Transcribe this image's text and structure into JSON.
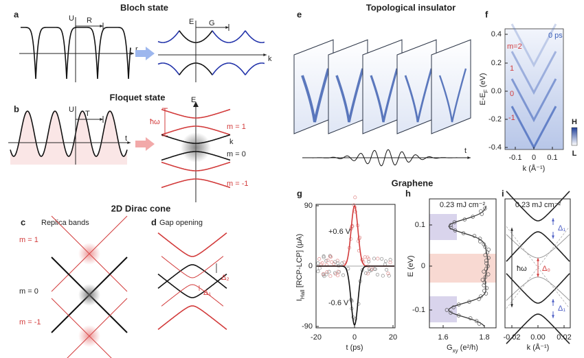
{
  "titles": {
    "bloch": "Bloch state",
    "floquet": "Floquet state",
    "dirac": "2D Dirac cone",
    "ti": "Topological insulator",
    "graphene": "Graphene"
  },
  "panel_labels": [
    "a",
    "b",
    "c",
    "d",
    "e",
    "f",
    "g",
    "h",
    "i"
  ],
  "a": {
    "potential_axis": "U",
    "period": "R",
    "position_axis": "r",
    "energy_axis": "E",
    "reciprocal": "G",
    "momentum_axis": "k"
  },
  "b": {
    "potential_axis": "U",
    "period": "T",
    "time_axis": "t",
    "energy_axis": "E",
    "photon": "ħω",
    "momentum_axis": "k",
    "replicas": [
      "m = 1",
      "m = 0",
      "m = -1"
    ]
  },
  "c": {
    "title": "Replica bands",
    "replicas": [
      "m = 1",
      "m = 0",
      "m = -1"
    ]
  },
  "d": {
    "title": "Gap opening",
    "gaps": [
      "Δ₂",
      "Δ₁"
    ]
  },
  "e": {
    "time_axis": "t"
  },
  "f": {
    "delay": "0 ps",
    "replicas": [
      "m=2",
      "1",
      "0",
      "-1"
    ],
    "y_label": {
      "main": "E-E",
      "sub": "F",
      "unit": " (eV)"
    },
    "y_ticks": [
      "0.4",
      "0.2",
      "0.0",
      "-0.2",
      "-0.4"
    ],
    "x_label": "k (Å⁻¹)",
    "x_ticks": [
      "-0.1",
      "0",
      "0.1"
    ],
    "colorbar": [
      "H",
      "L"
    ]
  },
  "g": {
    "y_label": {
      "main": "I",
      "sub": "Hall",
      "unit": " [RCP-LCP] (μA)"
    },
    "y_ticks": [
      "90",
      "0",
      "-90"
    ],
    "x_ticks": [
      "-20",
      "0",
      "20"
    ],
    "x_label": "t (ps)",
    "annotations": [
      "+0.6 V",
      "-0.6 V"
    ]
  },
  "h": {
    "fluence": "0.23 mJ cm⁻²",
    "y_label": "E (eV)",
    "y_ticks": [
      "0.1",
      "0",
      "-0.1"
    ],
    "x_ticks": [
      "1.6",
      "1.8"
    ],
    "x_label": {
      "main": "G",
      "sub": "xy",
      "unit": " (e²/h)"
    }
  },
  "i": {
    "fluence": "0.23 mJ cm⁻²",
    "photon": "ħω",
    "gaps": [
      "Δ₁",
      "Δ₀",
      "Δ₁"
    ],
    "x_ticks": [
      "-0.02",
      "0.00",
      "0.02"
    ],
    "x_label": "k (Å⁻¹)"
  }
}
